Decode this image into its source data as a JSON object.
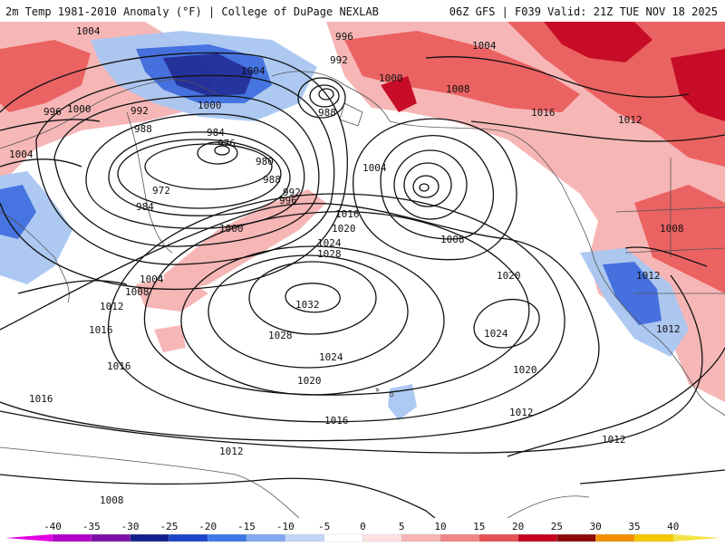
{
  "header": {
    "left_title": "2m Temp 1981-2010 Anomaly (°F) | College of DuPage NEXLAB",
    "right_title": "06Z GFS | F039 Valid: 21Z TUE NOV 18 2025"
  },
  "colors": {
    "cold_strong": "#1a2a9a",
    "cold_mid": "#3d6de0",
    "cold_light": "#a9c7f2",
    "warm_light": "#f6b3b3",
    "warm_mid": "#ea5a5a",
    "warm_strong": "#c3001b",
    "coast": "#555555",
    "isobar": "#111111"
  },
  "colorbar": {
    "labels": [
      "-40",
      "-35",
      "-30",
      "-25",
      "-20",
      "-15",
      "-10",
      "-5",
      "0",
      "5",
      "10",
      "15",
      "20",
      "25",
      "30",
      "35",
      "40"
    ],
    "colors": [
      "#e300e3",
      "#b000c8",
      "#7d0fa7",
      "#141e8c",
      "#1c44c8",
      "#3f78e6",
      "#7fa8ef",
      "#c1d6f6",
      "#ffffff",
      "#fde0e0",
      "#f6b3b3",
      "#ef8585",
      "#e65050",
      "#c6001f",
      "#8f0a0a",
      "#f38f00",
      "#f7c700",
      "#f5e24a"
    ]
  },
  "isobar_labels": [
    {
      "id": "l1",
      "text": "1004"
    },
    {
      "id": "l2",
      "text": "996"
    },
    {
      "id": "l3",
      "text": "992"
    },
    {
      "id": "l4",
      "text": "1004"
    },
    {
      "id": "l5",
      "text": "1000"
    },
    {
      "id": "l6",
      "text": "988"
    },
    {
      "id": "l7",
      "text": "1008"
    },
    {
      "id": "l8",
      "text": "1004"
    },
    {
      "id": "l9",
      "text": "1016"
    },
    {
      "id": "l10",
      "text": "996"
    },
    {
      "id": "l11",
      "text": "1000"
    },
    {
      "id": "l12",
      "text": "992"
    },
    {
      "id": "l13",
      "text": "1004"
    },
    {
      "id": "l14",
      "text": "1000"
    },
    {
      "id": "l15",
      "text": "988"
    },
    {
      "id": "l16",
      "text": "1012"
    },
    {
      "id": "l17",
      "text": "984"
    },
    {
      "id": "l18",
      "text": "976"
    },
    {
      "id": "l19",
      "text": "980"
    },
    {
      "id": "l20",
      "text": "972"
    },
    {
      "id": "l21",
      "text": "984"
    },
    {
      "id": "l22",
      "text": "988"
    },
    {
      "id": "l23",
      "text": "992"
    },
    {
      "id": "l24",
      "text": "996"
    },
    {
      "id": "l25",
      "text": "1004"
    },
    {
      "id": "l26",
      "text": "1016"
    },
    {
      "id": "l27",
      "text": "1020"
    },
    {
      "id": "l28",
      "text": "1024"
    },
    {
      "id": "l29",
      "text": "1028"
    },
    {
      "id": "l30",
      "text": "1008"
    },
    {
      "id": "l31",
      "text": "1000"
    },
    {
      "id": "l32",
      "text": "1008"
    },
    {
      "id": "l33",
      "text": "1004"
    },
    {
      "id": "l34",
      "text": "1008"
    },
    {
      "id": "l35",
      "text": "1012"
    },
    {
      "id": "l36",
      "text": "1020"
    },
    {
      "id": "l37",
      "text": "1032"
    },
    {
      "id": "l38",
      "text": "1016"
    },
    {
      "id": "l39",
      "text": "1028"
    },
    {
      "id": "l40",
      "text": "1024"
    },
    {
      "id": "l41",
      "text": "1024"
    },
    {
      "id": "l42",
      "text": "1012"
    },
    {
      "id": "l43",
      "text": "1016"
    },
    {
      "id": "l44",
      "text": "1020"
    },
    {
      "id": "l45",
      "text": "1020"
    },
    {
      "id": "l46",
      "text": "1012"
    },
    {
      "id": "l47",
      "text": "1016"
    },
    {
      "id": "l48",
      "text": "1016"
    },
    {
      "id": "l49",
      "text": "1012"
    },
    {
      "id": "l50",
      "text": "1012"
    },
    {
      "id": "l51",
      "text": "1008"
    },
    {
      "id": "l52",
      "text": "1012"
    }
  ]
}
